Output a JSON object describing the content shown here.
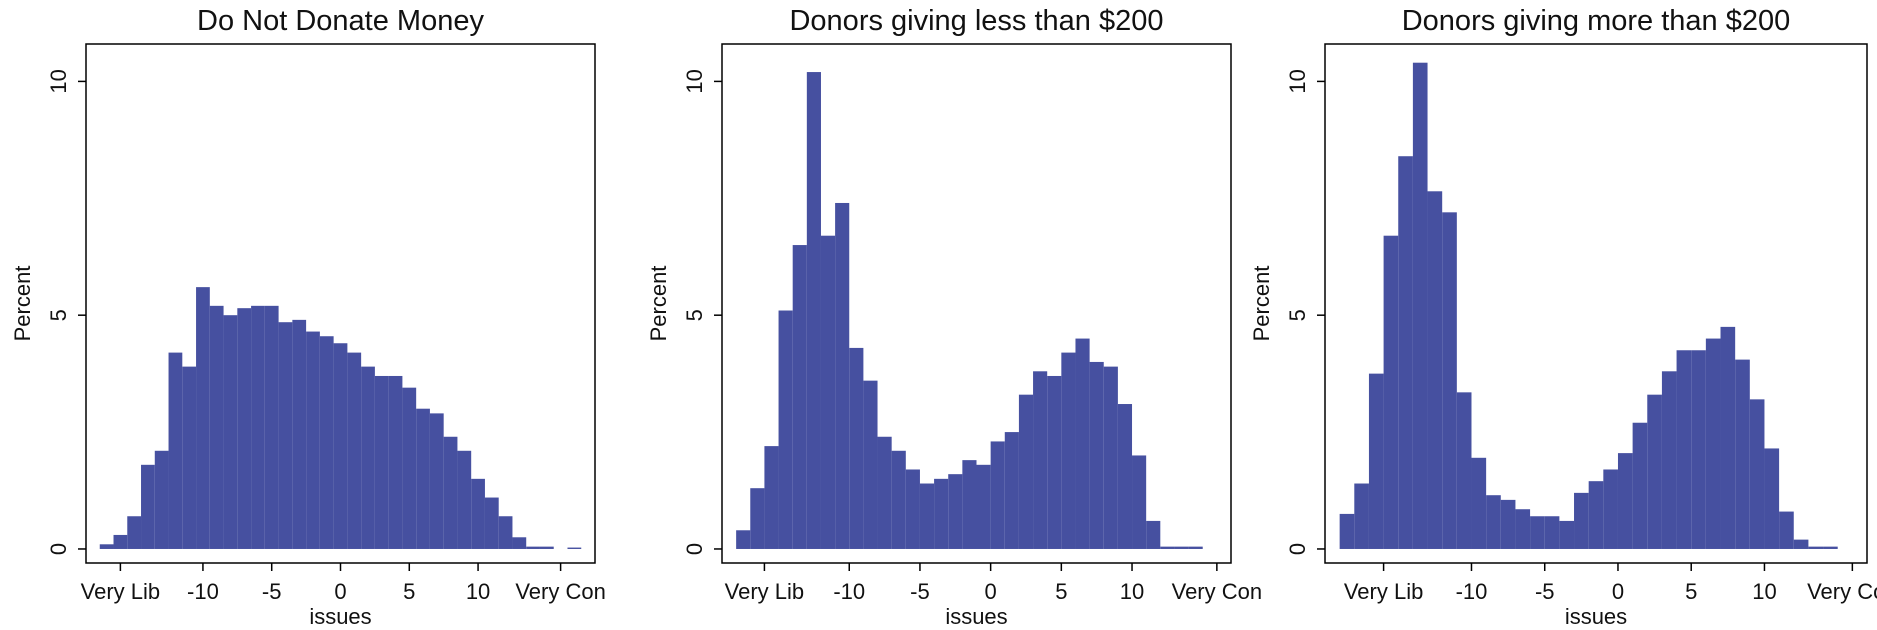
{
  "chart_data": [
    {
      "type": "histogram",
      "title": "Do Not Donate Money",
      "xlabel": "issues",
      "ylabel": "Percent",
      "color": "#4650a0",
      "bins": [
        -17.5,
        -16.5,
        -15.5,
        -14.5,
        -13.5,
        -12.5,
        -11.5,
        -10.5,
        -9.5,
        -8.5,
        -7.5,
        -6.5,
        -5.5,
        -4.5,
        -3.5,
        -2.5,
        -1.5,
        -0.5,
        0.5,
        1.5,
        2.5,
        3.5,
        4.5,
        5.5,
        6.5,
        7.5,
        8.5,
        9.5,
        10.5,
        11.5,
        12.5,
        13.5,
        14.5,
        15.5,
        16.5,
        17.5
      ],
      "values": [
        0.1,
        0.3,
        0.7,
        1.8,
        2.1,
        4.2,
        3.9,
        5.6,
        5.2,
        5.0,
        5.15,
        5.2,
        5.2,
        4.85,
        4.9,
        4.65,
        4.55,
        4.4,
        4.2,
        3.9,
        3.7,
        3.7,
        3.45,
        3.0,
        2.9,
        2.4,
        2.1,
        1.5,
        1.1,
        0.7,
        0.25,
        0.05,
        0.05,
        0,
        0.03
      ],
      "xlim": [
        -18.5,
        18.5
      ],
      "ylim": [
        -0.3,
        10.8
      ],
      "xticks": [
        {
          "value": -16,
          "label": "Very Lib"
        },
        -10,
        -5,
        0,
        5,
        10,
        {
          "value": 16,
          "label": "Very Con"
        }
      ],
      "yticks": [
        0,
        5,
        10
      ]
    },
    {
      "type": "histogram",
      "title": "Donors giving less than $200",
      "xlabel": "issues",
      "ylabel": "Percent",
      "color": "#4650a0",
      "bins": [
        -18,
        -17,
        -16,
        -15,
        -14,
        -13,
        -12,
        -11,
        -10,
        -9,
        -8,
        -7,
        -6,
        -5,
        -4,
        -3,
        -2,
        -1,
        0,
        1,
        2,
        3,
        4,
        5,
        6,
        7,
        8,
        9,
        10,
        11,
        12,
        13,
        14,
        15
      ],
      "values": [
        0.4,
        1.3,
        2.2,
        5.1,
        6.5,
        10.2,
        6.7,
        7.4,
        4.3,
        3.6,
        2.4,
        2.1,
        1.7,
        1.4,
        1.5,
        1.6,
        1.9,
        1.8,
        2.3,
        2.5,
        3.3,
        3.8,
        3.7,
        4.2,
        4.5,
        4.0,
        3.9,
        3.1,
        2.0,
        0.6,
        0.05,
        0.05,
        0.05
      ],
      "xlim": [
        -19,
        17
      ],
      "ylim": [
        -0.3,
        10.8
      ],
      "xticks": [
        {
          "value": -16,
          "label": "Very Lib"
        },
        -10,
        -5,
        0,
        5,
        10,
        {
          "value": 16,
          "label": "Very Con"
        }
      ],
      "yticks": [
        0,
        5,
        10
      ]
    },
    {
      "type": "histogram",
      "title": "Donors giving more than $200",
      "xlabel": "issues",
      "ylabel": "Percent",
      "color": "#4650a0",
      "bins": [
        -19,
        -18,
        -17,
        -16,
        -15,
        -14,
        -13,
        -12,
        -11,
        -10,
        -9,
        -8,
        -7,
        -6,
        -5,
        -4,
        -3,
        -2,
        -1,
        0,
        1,
        2,
        3,
        4,
        5,
        6,
        7,
        8,
        9,
        10,
        11,
        12,
        13,
        14,
        15
      ],
      "values": [
        0.75,
        1.4,
        3.75,
        6.7,
        8.4,
        10.4,
        7.65,
        7.2,
        3.35,
        1.95,
        1.15,
        1.05,
        0.85,
        0.7,
        0.7,
        0.6,
        1.2,
        1.45,
        1.7,
        2.05,
        2.7,
        3.3,
        3.8,
        4.25,
        4.25,
        4.5,
        4.75,
        4.05,
        3.2,
        2.15,
        0.8,
        0.2,
        0.05,
        0.05
      ],
      "xlim": [
        -20,
        17
      ],
      "ylim": [
        -0.3,
        10.8
      ],
      "xticks": [
        {
          "value": -16,
          "label": "Very Lib"
        },
        -10,
        -5,
        0,
        5,
        10,
        {
          "value": 16,
          "label": "Very Con"
        }
      ],
      "yticks": [
        0,
        5,
        10
      ]
    }
  ]
}
